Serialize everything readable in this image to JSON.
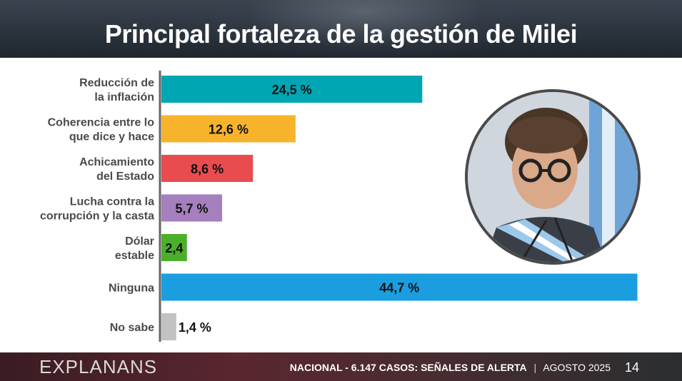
{
  "title": "Principal fortaleza de la gestión de Milei",
  "chart_data": {
    "type": "bar",
    "orientation": "horizontal",
    "title": "Principal fortaleza de la gestión de Milei",
    "categories": [
      [
        "Reducción de",
        "la inflación"
      ],
      [
        "Coherencia entre lo",
        "que dice y hace"
      ],
      [
        "Achicamiento",
        "del Estado"
      ],
      [
        "Lucha contra la",
        "corrupción y la casta"
      ],
      [
        "Dólar",
        "estable"
      ],
      [
        "Ninguna"
      ],
      [
        "No sabe"
      ]
    ],
    "values": [
      24.5,
      12.6,
      8.6,
      5.7,
      2.4,
      44.7,
      1.4
    ],
    "value_labels": [
      "24,5 %",
      "12,6 %",
      "8,6 %",
      "5,7 %",
      "2,4",
      "44,7 %",
      "1,4 %"
    ],
    "colors": [
      "#00a6b4",
      "#f7b32b",
      "#e84c4f",
      "#a67fbe",
      "#4caf2a",
      "#1a9ee0",
      "#c2c2c2"
    ],
    "label_inside": [
      true,
      true,
      true,
      true,
      true,
      true,
      false
    ],
    "xlim": [
      0,
      45
    ],
    "xlabel": "",
    "ylabel": ""
  },
  "photo": {
    "description_icon": "president-portrait"
  },
  "footer": {
    "brand": "EXPLANANS",
    "scope": "NACIONAL - 6.147 CASOS:",
    "study": "SEÑALES DE ALERTA",
    "separator": "|",
    "date": "AGOSTO 2025",
    "page": "14"
  }
}
